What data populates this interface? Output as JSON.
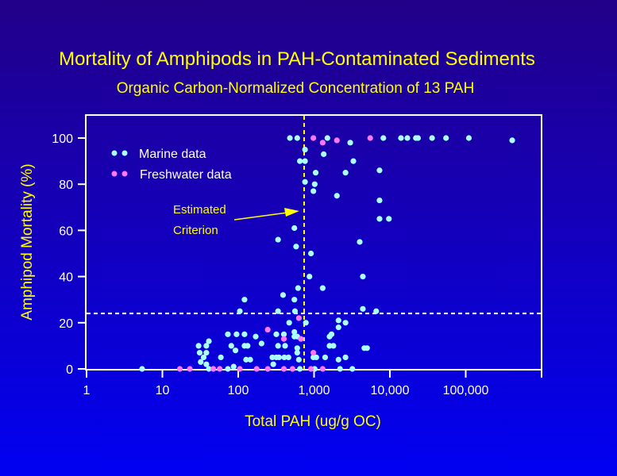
{
  "chart_data": {
    "type": "scatter",
    "title": "Mortality of Amphipods in PAH-Contaminated Sediments",
    "subtitle": "Organic Carbon-Normalized Concentration of 13 PAH",
    "xlabel": "Total PAH (ug/g OC)",
    "ylabel": "Amphipod Mortality (%)",
    "xscale": "log",
    "xlim": [
      1,
      1000000
    ],
    "ylim": [
      0,
      110
    ],
    "xticks": [
      1,
      10,
      100,
      1000,
      10000,
      100000,
      1000000
    ],
    "xtick_labels": [
      "1",
      "10",
      "100",
      "1,000",
      "10,000",
      "100,000",
      ""
    ],
    "yticks": [
      0,
      20,
      40,
      60,
      80,
      100
    ],
    "ytick_labels": [
      "0",
      "20",
      "40",
      "60",
      "80",
      "100"
    ],
    "grid": false,
    "legend_position": "top-left",
    "reference_lines": {
      "vertical_x": 740,
      "horizontal_y": 24
    },
    "annotation": {
      "lines": [
        "Estimated",
        "Criterion"
      ]
    },
    "colors": {
      "title": "#ffff00",
      "marine": "#aaffff",
      "freshwater": "#ff77ff",
      "axis": "#ffffff"
    },
    "series": [
      {
        "name": "Marine data",
        "points": [
          [
            5.4,
            0
          ],
          [
            30,
            10
          ],
          [
            38,
            10
          ],
          [
            41,
            12
          ],
          [
            31,
            7
          ],
          [
            38,
            7
          ],
          [
            35,
            5
          ],
          [
            32,
            3
          ],
          [
            38,
            2
          ],
          [
            41,
            0
          ],
          [
            59,
            5
          ],
          [
            73,
            15
          ],
          [
            95,
            15
          ],
          [
            81,
            10
          ],
          [
            92,
            8
          ],
          [
            73,
            0
          ],
          [
            87,
            1
          ],
          [
            105,
            25
          ],
          [
            121,
            30
          ],
          [
            121,
            15
          ],
          [
            121,
            10
          ],
          [
            133,
            10
          ],
          [
            127,
            4
          ],
          [
            144,
            4
          ],
          [
            170,
            14
          ],
          [
            203,
            11
          ],
          [
            282,
            5
          ],
          [
            318,
            5
          ],
          [
            345,
            5
          ],
          [
            290,
            2
          ],
          [
            318,
            15
          ],
          [
            335,
            10
          ],
          [
            335,
            25
          ],
          [
            390,
            32
          ],
          [
            335,
            56
          ],
          [
            400,
            15
          ],
          [
            415,
            10
          ],
          [
            405,
            5
          ],
          [
            460,
            5
          ],
          [
            470,
            20
          ],
          [
            550,
            30
          ],
          [
            615,
            35
          ],
          [
            560,
            25
          ],
          [
            550,
            61
          ],
          [
            580,
            53
          ],
          [
            480,
            100
          ],
          [
            600,
            100
          ],
          [
            550,
            16
          ],
          [
            550,
            14
          ],
          [
            600,
            14
          ],
          [
            600,
            9
          ],
          [
            600,
            7
          ],
          [
            630,
            4
          ],
          [
            650,
            0
          ],
          [
            650,
            90
          ],
          [
            760,
            95
          ],
          [
            760,
            90
          ],
          [
            760,
            81
          ],
          [
            780,
            20
          ],
          [
            870,
            40
          ],
          [
            910,
            50
          ],
          [
            980,
            77
          ],
          [
            1020,
            80
          ],
          [
            1050,
            85
          ],
          [
            980,
            5
          ],
          [
            1070,
            5
          ],
          [
            1020,
            0
          ],
          [
            1500,
            100
          ],
          [
            1340,
            93
          ],
          [
            3000,
            98
          ],
          [
            3300,
            90
          ],
          [
            2600,
            85
          ],
          [
            2000,
            75
          ],
          [
            7300,
            86
          ],
          [
            7300,
            73
          ],
          [
            7300,
            65
          ],
          [
            9700,
            65
          ],
          [
            4000,
            55
          ],
          [
            4400,
            40
          ],
          [
            1300,
            35
          ],
          [
            4400,
            26
          ],
          [
            6600,
            25
          ],
          [
            2100,
            21
          ],
          [
            2600,
            20
          ],
          [
            2100,
            18
          ],
          [
            1600,
            14
          ],
          [
            1700,
            15
          ],
          [
            1600,
            10
          ],
          [
            1800,
            10
          ],
          [
            4600,
            9
          ],
          [
            5000,
            9
          ],
          [
            1400,
            5
          ],
          [
            2600,
            5
          ],
          [
            2100,
            4
          ],
          [
            2200,
            0
          ],
          [
            3200,
            0
          ],
          [
            8200,
            100
          ],
          [
            14000,
            100
          ],
          [
            17000,
            100
          ],
          [
            22000,
            100
          ],
          [
            23500,
            100
          ],
          [
            36000,
            100
          ],
          [
            55000,
            100
          ],
          [
            110000,
            100
          ],
          [
            410000,
            99
          ]
        ]
      },
      {
        "name": "Freshwater data",
        "points": [
          [
            17,
            0
          ],
          [
            23,
            0
          ],
          [
            47,
            0
          ],
          [
            57,
            0
          ],
          [
            105,
            0
          ],
          [
            175,
            0
          ],
          [
            245,
            0
          ],
          [
            400,
            0
          ],
          [
            520,
            0
          ],
          [
            910,
            0
          ],
          [
            1300,
            0
          ],
          [
            245,
            17
          ],
          [
            400,
            13
          ],
          [
            630,
            22
          ],
          [
            670,
            13
          ],
          [
            980,
            7
          ],
          [
            980,
            100
          ],
          [
            1300,
            98
          ],
          [
            2000,
            99
          ],
          [
            5500,
            100
          ]
        ]
      }
    ]
  }
}
